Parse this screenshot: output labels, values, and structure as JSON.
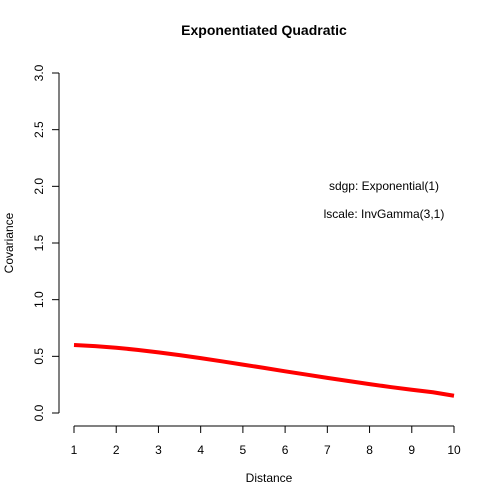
{
  "chart_data": {
    "type": "line",
    "title": "Exponentiated Quadratic",
    "xlabel": "Distance",
    "ylabel": "Covariance",
    "xlim": [
      1,
      10
    ],
    "ylim": [
      0,
      3
    ],
    "xticks": [
      "1",
      "2",
      "3",
      "4",
      "5",
      "6",
      "7",
      "8",
      "9",
      "10"
    ],
    "yticks": [
      "0.0",
      "0.5",
      "1.0",
      "1.5",
      "2.0",
      "2.5",
      "3.0"
    ],
    "grid": false,
    "series": [
      {
        "color": "#ff0000",
        "x": [
          1,
          1.5,
          2,
          2.5,
          3,
          3.5,
          4,
          4.5,
          5,
          5.5,
          6,
          6.5,
          7,
          7.5,
          8,
          8.5,
          9,
          9.5,
          10
        ],
        "y": [
          0.6,
          0.59,
          0.576,
          0.557,
          0.535,
          0.511,
          0.484,
          0.456,
          0.427,
          0.398,
          0.368,
          0.339,
          0.31,
          0.282,
          0.255,
          0.229,
          0.205,
          0.183,
          0.152
        ]
      }
    ],
    "annotations": [
      "sdgp: Exponential(1)",
      "lscale: InvGamma(3,1)"
    ]
  }
}
